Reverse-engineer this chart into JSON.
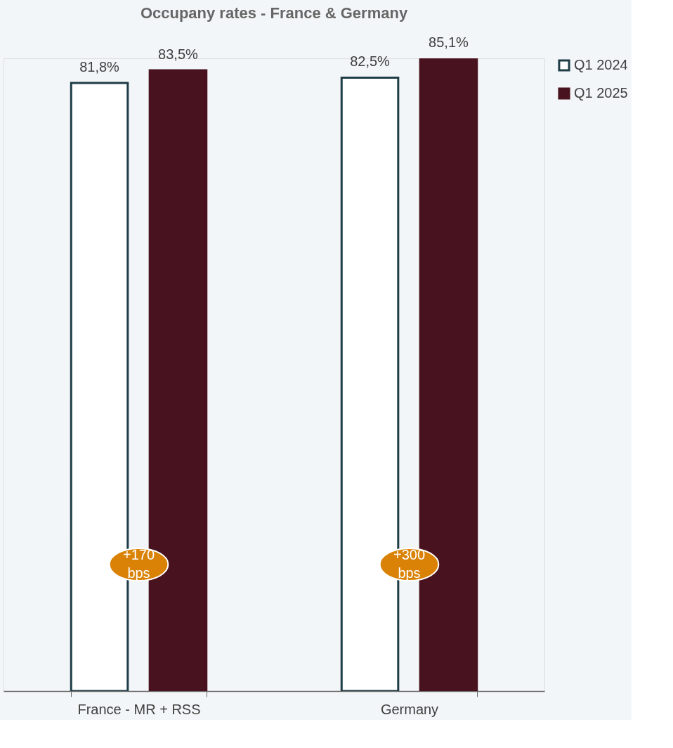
{
  "chart_data": {
    "type": "bar",
    "title": "Occupany rates - France & Germany",
    "categories": [
      "France - MR + RSS",
      "Germany"
    ],
    "series": [
      {
        "name": "Q1 2024",
        "color": "#ffffff",
        "values": [
          81.8,
          82.5
        ],
        "value_labels": [
          "81,8%",
          "82,5%"
        ]
      },
      {
        "name": "Q1 2025",
        "color": "#48121e",
        "values": [
          83.5,
          85.1
        ],
        "value_labels": [
          "83,5%",
          "85,1%"
        ]
      }
    ],
    "tick_labels": "x",
    "legend": "right",
    "annotations": [
      "+170 bps",
      "+300 bps"
    ]
  }
}
